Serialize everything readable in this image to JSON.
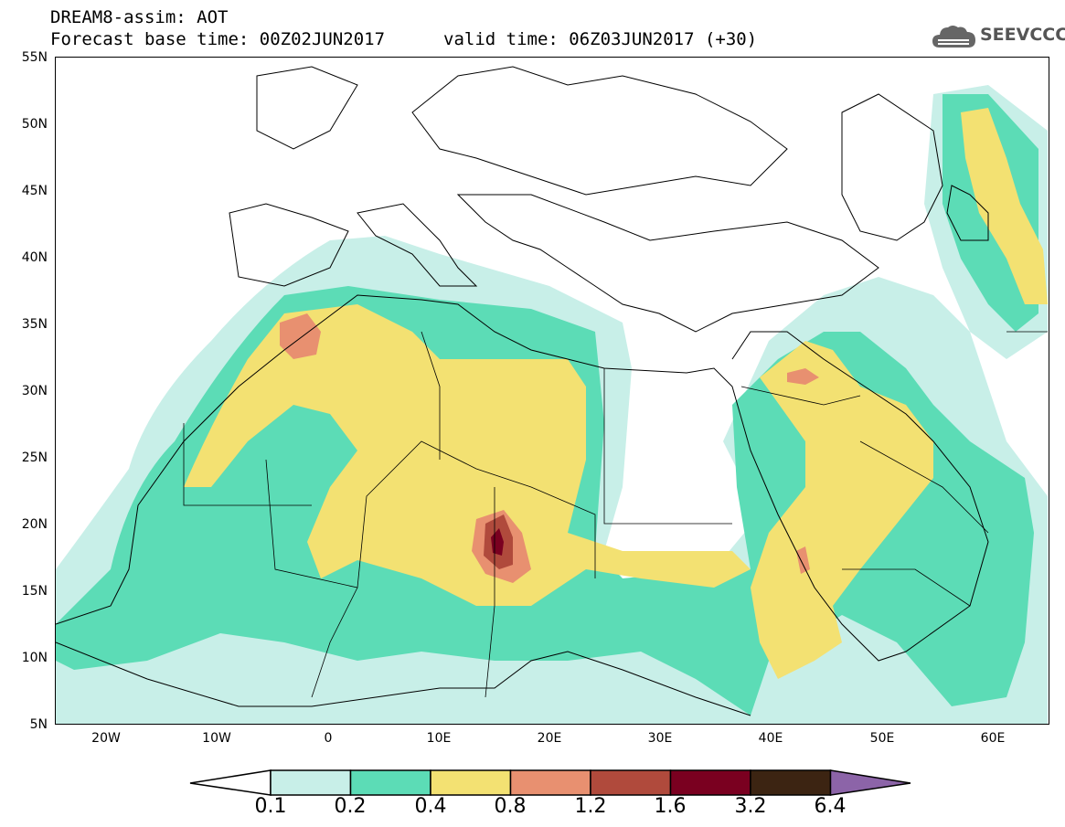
{
  "header": {
    "line1": "DREAM8-assim: AOT",
    "base_time": "Forecast base time: 00Z02JUN2017",
    "valid_time": "valid time: 06Z03JUN2017 (+30)"
  },
  "logo": {
    "text": "SEEVCCC"
  },
  "map": {
    "lat_labels": [
      "55N",
      "50N",
      "45N",
      "40N",
      "35N",
      "30N",
      "25N",
      "20N",
      "15N",
      "10N",
      "5N"
    ],
    "lon_labels": [
      "20W",
      "10W",
      "0",
      "10E",
      "20E",
      "30E",
      "40E",
      "50E",
      "60E"
    ],
    "extent": {
      "lon_min": -25,
      "lon_max": 65,
      "lat_min": 5,
      "lat_max": 55
    },
    "field": "Aerosol optical thickness (dust)"
  },
  "colorbar": {
    "labels": [
      "0.1",
      "0.2",
      "0.4",
      "0.8",
      "1.2",
      "1.6",
      "3.2",
      "6.4"
    ],
    "colors": [
      "#ffffff",
      "#c8efe8",
      "#5cdcb6",
      "#f3e172",
      "#e89070",
      "#b04a3c",
      "#7a0020",
      "#3c2412",
      "#8c64a8"
    ]
  }
}
